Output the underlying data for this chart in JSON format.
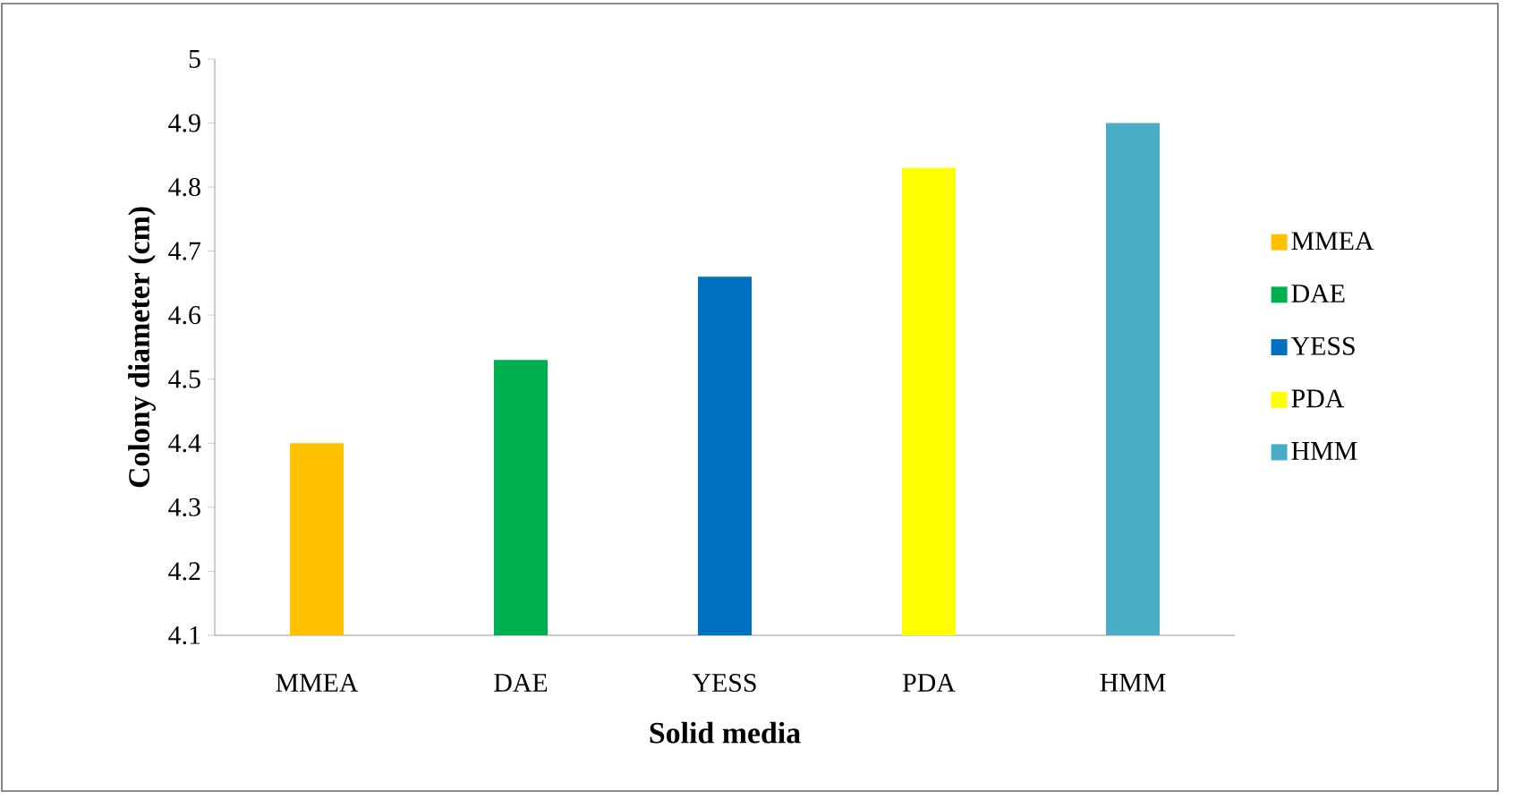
{
  "chart_data": {
    "type": "bar",
    "xlabel": "Solid media",
    "ylabel": "Colony diameter (cm)",
    "categories": [
      "MMEA",
      "DAE",
      "YESS",
      "PDA",
      "HMM"
    ],
    "series": [
      {
        "name": "MMEA",
        "color": "#ffc000",
        "values": [
          4.4,
          null,
          null,
          null,
          null
        ]
      },
      {
        "name": "DAE",
        "color": "#00b050",
        "values": [
          null,
          4.53,
          null,
          null,
          null
        ]
      },
      {
        "name": "YESS",
        "color": "#0070c0",
        "values": [
          null,
          null,
          4.66,
          null,
          null
        ]
      },
      {
        "name": "PDA",
        "color": "#ffff00",
        "values": [
          null,
          null,
          null,
          4.83,
          null
        ]
      },
      {
        "name": "HMM",
        "color": "#4bacc6",
        "values": [
          null,
          null,
          null,
          null,
          4.9
        ]
      }
    ],
    "stacked": true,
    "ylim": [
      4.1,
      5
    ],
    "yticks": [
      4.1,
      4.2,
      4.3,
      4.4,
      4.5,
      4.6,
      4.7,
      4.8,
      4.9,
      5
    ],
    "grid": false,
    "legend": "right"
  }
}
